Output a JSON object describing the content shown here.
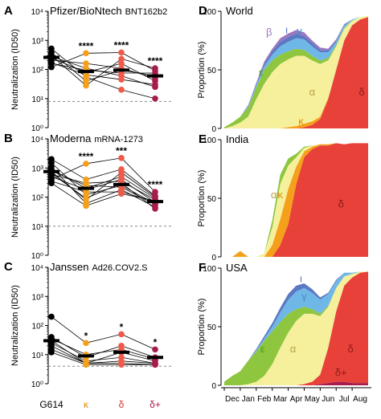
{
  "colors": {
    "G614": "#000000",
    "kappa": "#f5a01a",
    "delta": "#ef5a4b",
    "delta_plus": "#a81c4d",
    "alpha": "#f6ef9c",
    "epsilon": "#8ec63f",
    "gamma": "#6fb7e6",
    "iota": "#5b78c4",
    "beta": "#9b76c0",
    "delta_area": "#e8413a",
    "other_grey": "#d9d9d9",
    "dashed_line": "#888888"
  },
  "chart_data": [
    {
      "type": "scatter",
      "panel_label": "A",
      "title": "Pfizer/BioNtech",
      "subtitle": "BNT162b2",
      "ylabel": "Neutralization (ID50)",
      "y_scale": "log",
      "ylim_log10": [
        0,
        4
      ],
      "yticks": [
        "10⁰",
        "10¹",
        "10²",
        "10³",
        "10⁴"
      ],
      "categories": [
        "G614",
        "κ",
        "δ",
        "δ+"
      ],
      "threshold_log10": 0.9,
      "significance": [
        "",
        "****",
        "****",
        "****"
      ],
      "paired_lines": true,
      "values": [
        [
          380,
          280,
          300,
          170,
          250,
          210,
          520,
          160,
          120
        ],
        [
          40,
          110,
          28,
          65,
          80,
          160,
          55,
          95,
          360
        ],
        [
          95,
          60,
          230,
          45,
          160,
          110,
          20,
          75,
          380
        ],
        [
          60,
          25,
          110,
          30,
          40,
          50,
          10,
          75,
          90
        ]
      ],
      "medians": [
        260,
        85,
        95,
        60
      ]
    },
    {
      "type": "scatter",
      "panel_label": "B",
      "title": "Moderna",
      "subtitle": "mRNA-1273",
      "ylabel": "Neutralization (ID50)",
      "y_scale": "log",
      "ylim_log10": [
        0,
        4
      ],
      "yticks": [
        "10⁰",
        "10¹",
        "10²",
        "10³",
        "10⁴"
      ],
      "categories": [
        "G614",
        "κ",
        "δ",
        "δ+"
      ],
      "threshold_log10": 1.0,
      "significance": [
        "",
        "****",
        "***",
        "****"
      ],
      "paired_lines": true,
      "values": [
        [
          1500,
          900,
          1100,
          400,
          600,
          750,
          350,
          800,
          2000,
          650,
          300,
          500
        ],
        [
          120,
          200,
          60,
          1400,
          300,
          80,
          150,
          250,
          400,
          90,
          50,
          180
        ],
        [
          250,
          500,
          180,
          2200,
          350,
          700,
          150,
          220,
          900,
          300,
          130,
          400
        ],
        [
          60,
          90,
          45,
          150,
          80,
          100,
          70,
          55,
          110,
          40,
          75,
          65
        ]
      ],
      "medians": [
        750,
        200,
        270,
        70
      ]
    },
    {
      "type": "scatter",
      "panel_label": "C",
      "title": "Janssen",
      "subtitle": "Ad26.COV2.S",
      "ylabel": "Neutralization (ID50)",
      "y_scale": "log",
      "ylim_log10": [
        0,
        4
      ],
      "yticks": [
        "10⁰",
        "10¹",
        "10²",
        "10³",
        "10⁴"
      ],
      "categories": [
        "G614",
        "κ",
        "δ",
        "δ+"
      ],
      "threshold_log10": 0.6,
      "significance": [
        "",
        "*",
        "*",
        "*"
      ],
      "paired_lines": true,
      "values": [
        [
          200,
          40,
          30,
          20,
          25,
          15,
          12,
          35
        ],
        [
          25,
          8,
          5,
          5,
          6,
          5,
          4.5,
          10
        ],
        [
          50,
          20,
          12,
          6,
          8,
          5,
          4.5,
          15
        ],
        [
          15,
          8,
          6,
          5,
          5,
          4.5,
          4.5,
          7
        ]
      ],
      "medians": [
        30,
        9,
        12,
        8
      ]
    },
    {
      "type": "area",
      "panel_label": "D",
      "title": "World",
      "ylabel": "Proportion (%)",
      "ylim": [
        0,
        100
      ],
      "yticks": [
        "0",
        "50",
        "100"
      ],
      "x_labels": [
        "Dec",
        "Jan",
        "Feb",
        "Mar",
        "Apr",
        "May",
        "Jun",
        "Jul",
        "Aug"
      ],
      "x": [
        0,
        0.5,
        1,
        1.5,
        2,
        2.5,
        3,
        3.5,
        4,
        4.5,
        5,
        5.5,
        6,
        6.5,
        7,
        7.5,
        8,
        8.5,
        9
      ],
      "series": [
        {
          "name": "δ",
          "color": "#e8413a",
          "values": [
            0,
            0,
            0,
            0,
            0,
            0,
            0,
            0,
            0,
            0,
            1,
            3,
            8,
            25,
            50,
            75,
            88,
            93,
            95
          ]
        },
        {
          "name": "κ",
          "color": "#f5a01a",
          "values": [
            0,
            0,
            0,
            0,
            0,
            0,
            0,
            0,
            1,
            2,
            3,
            3,
            2,
            1,
            0,
            0,
            0,
            0,
            0
          ]
        },
        {
          "name": "α",
          "color": "#f6ef9c",
          "values": [
            0,
            2,
            5,
            10,
            25,
            38,
            48,
            55,
            58,
            60,
            58,
            52,
            45,
            32,
            20,
            10,
            4,
            2,
            1
          ]
        },
        {
          "name": "ε",
          "color": "#8ec63f",
          "values": [
            1,
            3,
            5,
            8,
            10,
            12,
            10,
            8,
            7,
            6,
            5,
            4,
            3,
            2,
            1,
            1,
            0,
            0,
            0
          ]
        },
        {
          "name": "γ",
          "color": "#6fb7e6",
          "values": [
            0,
            0,
            0,
            1,
            2,
            3,
            5,
            7,
            8,
            9,
            9,
            8,
            7,
            5,
            3,
            2,
            1,
            0,
            0
          ]
        },
        {
          "name": "ι",
          "color": "#5b78c4",
          "values": [
            0,
            0,
            0,
            0,
            1,
            2,
            3,
            4,
            4,
            4,
            3,
            3,
            2,
            2,
            1,
            1,
            0,
            0,
            0
          ]
        },
        {
          "name": "β",
          "color": "#9b76c0",
          "values": [
            0,
            0,
            0,
            1,
            1,
            2,
            2,
            3,
            3,
            3,
            3,
            2,
            2,
            1,
            1,
            0,
            0,
            0,
            0
          ]
        }
      ],
      "labels": [
        {
          "text": "β",
          "series": "β",
          "x": 2.8,
          "y": 79,
          "color": "#9b76c0"
        },
        {
          "text": "ι",
          "series": "ι",
          "x": 3.9,
          "y": 81,
          "color": "#5b78c4"
        },
        {
          "text": "γ",
          "series": "γ",
          "x": 4.7,
          "y": 80,
          "color": "#3d8ecb"
        },
        {
          "text": "ε",
          "series": "ε",
          "x": 2.3,
          "y": 45,
          "color": "#4f9a1f"
        },
        {
          "text": "α",
          "series": "α",
          "x": 5.5,
          "y": 28,
          "color": "#b8a24a"
        },
        {
          "text": "κ",
          "series": "κ",
          "x": 4.8,
          "y": 3,
          "color": "#e08a00"
        },
        {
          "text": "δ",
          "series": "δ",
          "x": 8.6,
          "y": 28,
          "color": "#8a1a16"
        }
      ]
    },
    {
      "type": "area",
      "panel_label": "E",
      "title": "India",
      "ylabel": "Proportion (%)",
      "ylim": [
        0,
        100
      ],
      "yticks": [
        "0",
        "50",
        "100"
      ],
      "x_labels": [
        "Dec",
        "Jan",
        "Feb",
        "Mar",
        "Apr",
        "May",
        "Jun",
        "Jul",
        "Aug"
      ],
      "x": [
        0,
        0.5,
        1,
        1.5,
        2,
        2.5,
        3,
        3.5,
        4,
        4.5,
        5,
        5.5,
        6,
        6.5,
        7,
        7.5,
        8,
        8.5,
        9
      ],
      "series": [
        {
          "name": "δ",
          "color": "#e8413a",
          "values": [
            0,
            0,
            0,
            0,
            0,
            0,
            0,
            10,
            28,
            62,
            85,
            92,
            95,
            95,
            97,
            96,
            97,
            97,
            97
          ]
        },
        {
          "name": "κ",
          "color": "#f5a01a",
          "values": [
            0,
            0,
            5,
            0,
            0,
            0,
            10,
            22,
            30,
            15,
            5,
            2,
            1,
            1,
            0,
            0,
            0,
            0,
            0
          ]
        },
        {
          "name": "α",
          "color": "#f6ef9c",
          "values": [
            0,
            0,
            0,
            0,
            0,
            3,
            15,
            30,
            20,
            8,
            3,
            1,
            0,
            0,
            0,
            0,
            0,
            0,
            0
          ]
        },
        {
          "name": "other",
          "color": "#8ec63f",
          "values": [
            0,
            0,
            0,
            0,
            0,
            0,
            6,
            8,
            6,
            3,
            1,
            0,
            0,
            0,
            0,
            0,
            0,
            0,
            0
          ]
        }
      ],
      "labels": [
        {
          "text": "α",
          "series": "α",
          "x": 3.1,
          "y": 50,
          "color": "#b8a24a"
        },
        {
          "text": "κ",
          "series": "κ",
          "x": 3.5,
          "y": 50,
          "color": "#e08a00"
        },
        {
          "text": "δ",
          "series": "δ",
          "x": 7.3,
          "y": 42,
          "color": "#8a1a16"
        }
      ]
    },
    {
      "type": "area",
      "panel_label": "F",
      "title": "USA",
      "ylabel": "Proportion (%)",
      "ylim": [
        0,
        100
      ],
      "yticks": [
        "0",
        "50",
        "100"
      ],
      "x_labels": [
        "Dec",
        "Jan",
        "Feb",
        "Mar",
        "Apr",
        "May",
        "Jun",
        "Jul",
        "Aug"
      ],
      "x": [
        0,
        0.5,
        1,
        1.5,
        2,
        2.5,
        3,
        3.5,
        4,
        4.5,
        5,
        5.5,
        6,
        6.5,
        7,
        7.5,
        8,
        8.5,
        9
      ],
      "series": [
        {
          "name": "δ+",
          "color": "#a81c4d",
          "values": [
            0,
            0,
            0,
            0,
            0,
            0,
            0,
            0,
            0,
            0,
            0,
            0,
            1,
            2,
            3,
            3,
            2,
            2,
            2
          ]
        },
        {
          "name": "δ",
          "color": "#e8413a",
          "values": [
            0,
            0,
            0,
            0,
            0,
            0,
            0,
            0,
            0,
            0,
            1,
            3,
            8,
            30,
            60,
            82,
            90,
            94,
            95
          ]
        },
        {
          "name": "α",
          "color": "#f6ef9c",
          "values": [
            0,
            0,
            0,
            1,
            3,
            8,
            18,
            32,
            45,
            55,
            60,
            58,
            50,
            35,
            20,
            8,
            3,
            1,
            0
          ]
        },
        {
          "name": "ε",
          "color": "#8ec63f",
          "values": [
            3,
            8,
            12,
            20,
            26,
            30,
            28,
            22,
            16,
            10,
            6,
            4,
            2,
            1,
            0,
            0,
            0,
            0,
            0
          ]
        },
        {
          "name": "γ",
          "color": "#6fb7e6",
          "values": [
            0,
            0,
            0,
            0,
            1,
            2,
            4,
            8,
            12,
            15,
            16,
            14,
            12,
            10,
            6,
            3,
            1,
            0,
            0
          ]
        },
        {
          "name": "ι",
          "color": "#5b78c4",
          "values": [
            0,
            0,
            0,
            0,
            1,
            2,
            3,
            4,
            5,
            5,
            4,
            3,
            2,
            1,
            1,
            0,
            0,
            0,
            0
          ]
        }
      ],
      "labels": [
        {
          "text": "ι",
          "series": "ι",
          "x": 4.8,
          "y": 88,
          "color": "#5b78c4"
        },
        {
          "text": "γ",
          "series": "γ",
          "x": 5.0,
          "y": 73,
          "color": "#3d8ecb"
        },
        {
          "text": "ε",
          "series": "ε",
          "x": 2.4,
          "y": 28,
          "color": "#4f9a1f"
        },
        {
          "text": "α",
          "series": "α",
          "x": 4.3,
          "y": 28,
          "color": "#b8a24a"
        },
        {
          "text": "δ",
          "series": "δ",
          "x": 7.9,
          "y": 28,
          "color": "#8a1a16"
        },
        {
          "text": "δ+",
          "series": "δ+",
          "x": 7.3,
          "y": 8,
          "color": "#8a1a16"
        }
      ]
    }
  ]
}
